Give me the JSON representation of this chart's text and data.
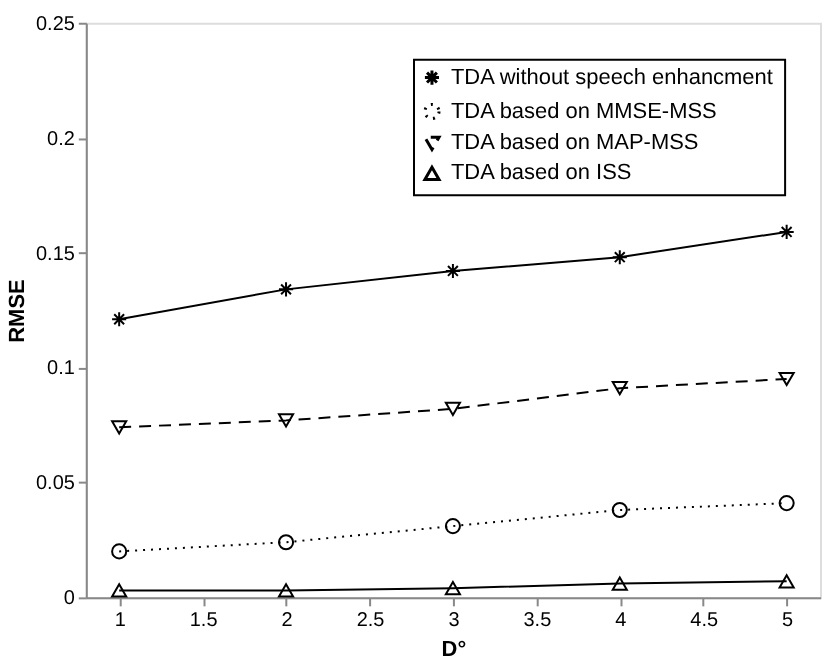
{
  "chart_data": {
    "type": "line",
    "xlabel": "D°",
    "ylabel": "RMSE",
    "x": [
      1,
      2,
      3,
      4,
      5
    ],
    "series": [
      {
        "name": "TDA without speech enhancment",
        "color": "#000000",
        "values": [
          0.121,
          0.134,
          0.142,
          0.148,
          0.159
        ],
        "marker": "cross",
        "line_style": "solid"
      },
      {
        "name": "TDA based on MMSE-MSS",
        "color": "#000000",
        "values": [
          0.02,
          0.024,
          0.031,
          0.038,
          0.041
        ],
        "marker": "circle",
        "line_style": "dotted"
      },
      {
        "name": "TDA based on MAP-MSS",
        "color": "#000000",
        "values": [
          0.074,
          0.077,
          0.082,
          0.091,
          0.095
        ],
        "marker": "triangle-down",
        "line_style": "dashed"
      },
      {
        "name": "TDA based on ISS",
        "color": "#000000",
        "values": [
          0.003,
          0.003,
          0.004,
          0.006,
          0.007
        ],
        "marker": "triangle",
        "line_style": "solid"
      }
    ],
    "xlim": [
      0.8,
      5.2
    ],
    "xticks": [
      1,
      1.5,
      2,
      2.5,
      3,
      3.5,
      4,
      4.5,
      5
    ],
    "ylim": [
      0,
      0.25
    ],
    "yticks": [
      0,
      0.05,
      0.1,
      0.15,
      0.2,
      0.25
    ],
    "grid": false,
    "legend": "top right"
  }
}
